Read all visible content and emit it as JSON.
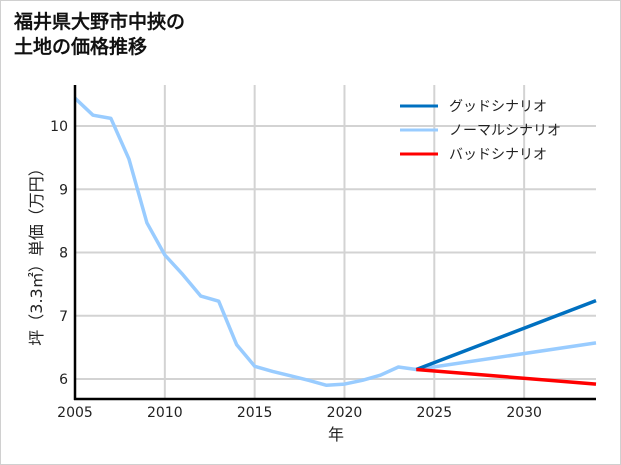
{
  "title": "福井県大野市中挾の\n土地の価格推移",
  "chart_data": {
    "type": "line",
    "title": "福井県大野市中挾の土地の価格推移",
    "xlabel": "年",
    "ylabel": "坪（3.3㎡）単価（万円）",
    "xlim": [
      2005,
      2034
    ],
    "ylim": [
      5.7,
      10.7
    ],
    "xticks": [
      2005,
      2010,
      2015,
      2020,
      2025,
      2030
    ],
    "yticks": [
      6,
      7,
      8,
      9,
      10
    ],
    "grid": true,
    "legend_position": "upper right",
    "series": [
      {
        "name": "ノーマルシナリオ",
        "color": "#99ccff",
        "x": [
          2005,
          2006,
          2007,
          2008,
          2009,
          2010,
          2011,
          2012,
          2013,
          2014,
          2015,
          2016,
          2017,
          2018,
          2019,
          2020,
          2021,
          2022,
          2023,
          2024,
          2034
        ],
        "values": [
          10.44,
          10.17,
          10.12,
          9.48,
          8.47,
          7.96,
          7.65,
          7.31,
          7.23,
          6.54,
          6.2,
          6.12,
          6.05,
          5.98,
          5.9,
          5.92,
          5.98,
          6.06,
          6.19,
          6.15,
          6.57
        ]
      },
      {
        "name": "グッドシナリオ",
        "color": "#0070c0",
        "x": [
          2024,
          2034
        ],
        "values": [
          6.15,
          7.24
        ]
      },
      {
        "name": "バッドシナリオ",
        "color": "#ff0000",
        "x": [
          2024,
          2034
        ],
        "values": [
          6.15,
          5.92
        ]
      }
    ],
    "legend": [
      {
        "label": "グッドシナリオ",
        "color": "#0070c0"
      },
      {
        "label": "ノーマルシナリオ",
        "color": "#99ccff"
      },
      {
        "label": "バッドシナリオ",
        "color": "#ff0000"
      }
    ]
  }
}
